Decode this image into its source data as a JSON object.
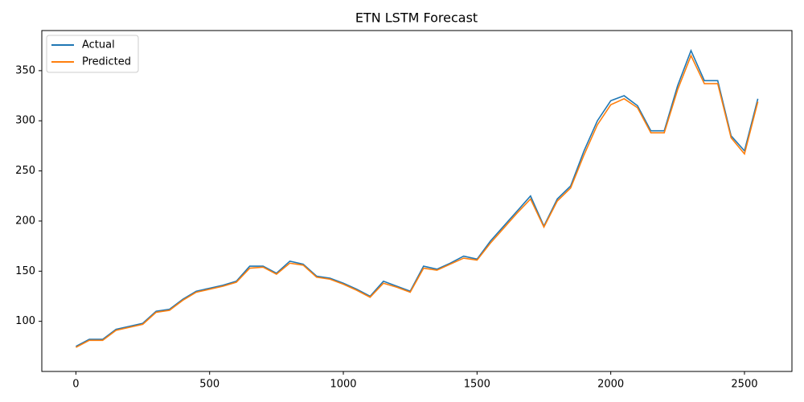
{
  "chart_data": {
    "type": "line",
    "title": "ETN LSTM Forecast",
    "x": [
      0,
      50,
      100,
      150,
      200,
      250,
      300,
      350,
      400,
      450,
      500,
      550,
      600,
      650,
      700,
      750,
      800,
      850,
      900,
      950,
      1000,
      1050,
      1100,
      1150,
      1200,
      1250,
      1300,
      1350,
      1400,
      1450,
      1500,
      1550,
      1600,
      1650,
      1700,
      1750,
      1800,
      1850,
      1900,
      1950,
      2000,
      2050,
      2100,
      2150,
      2200,
      2250,
      2300,
      2350,
      2400,
      2450,
      2500,
      2550
    ],
    "series": [
      {
        "name": "Actual",
        "color": "#1f77b4",
        "values": [
          75,
          82,
          82,
          92,
          95,
          98,
          110,
          112,
          122,
          130,
          133,
          136,
          140,
          155,
          155,
          148,
          160,
          157,
          145,
          143,
          138,
          132,
          125,
          140,
          135,
          130,
          155,
          152,
          158,
          165,
          162,
          180,
          195,
          210,
          225,
          195,
          222,
          235,
          270,
          300,
          320,
          325,
          315,
          290,
          290,
          335,
          370,
          340,
          340,
          285,
          270,
          322
        ]
      },
      {
        "name": "Predicted",
        "color": "#ff7f0e",
        "values": [
          74,
          81,
          81,
          91,
          94,
          97,
          109,
          111,
          121,
          129,
          132,
          135,
          139,
          153,
          154,
          147,
          158,
          156,
          144,
          142,
          137,
          131,
          124,
          138,
          134,
          129,
          153,
          151,
          157,
          163,
          161,
          178,
          193,
          208,
          222,
          194,
          220,
          233,
          266,
          296,
          316,
          322,
          313,
          288,
          288,
          331,
          365,
          337,
          337,
          283,
          267,
          319
        ]
      }
    ],
    "xlim": [
      -127.5,
      2677.5
    ],
    "ylim": [
      50,
      390
    ],
    "xticks": [
      0,
      500,
      1000,
      1500,
      2000,
      2500
    ],
    "yticks": [
      100,
      150,
      200,
      250,
      300,
      350
    ],
    "grid": false,
    "legend": "upper-left"
  }
}
